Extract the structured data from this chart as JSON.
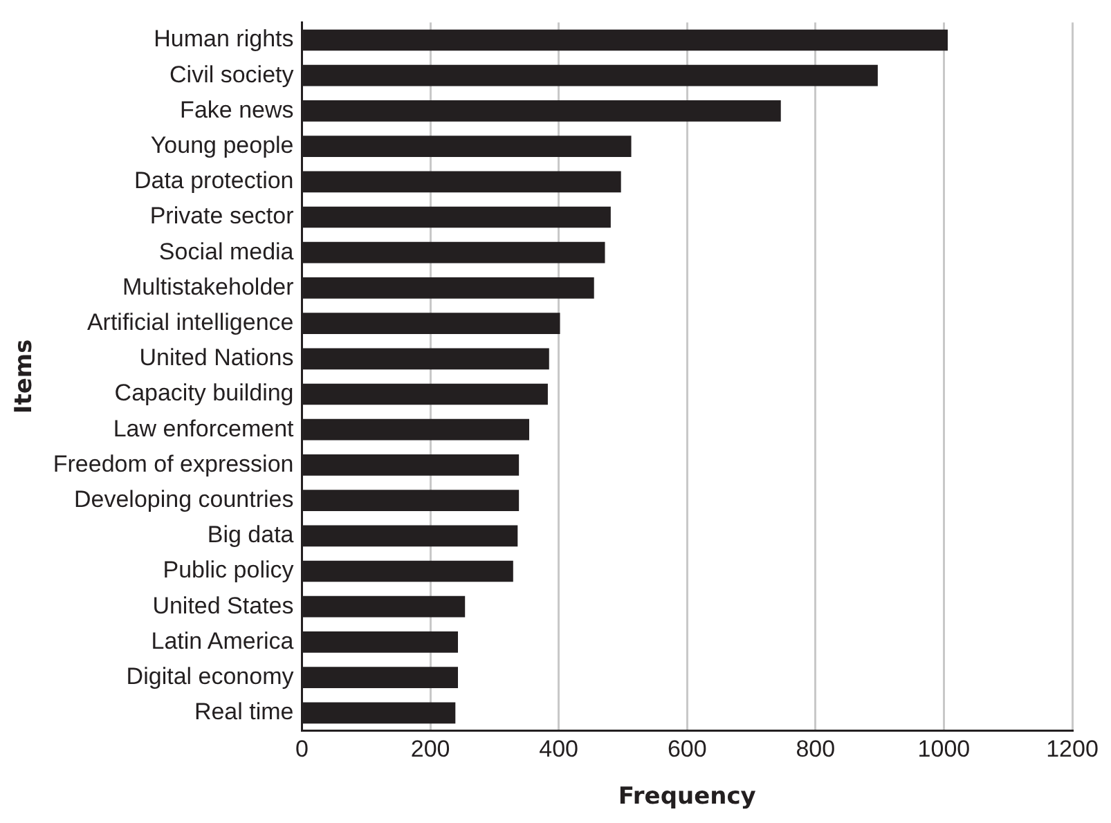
{
  "chart_data": {
    "type": "bar",
    "orientation": "horizontal",
    "xlabel": "Frequency",
    "ylabel": "Items",
    "categories": [
      "Human rights",
      "Civil society",
      "Fake news",
      "Young people",
      "Data protection",
      "Private sector",
      "Social media",
      "Multistakeholder",
      "Artificial intelligence",
      "United Nations",
      "Capacity building",
      "Law enforcement",
      "Freedom of expression",
      "Developing countries",
      "Big data",
      "Public policy",
      "United States",
      "Latin America",
      "Digital economy",
      "Real time"
    ],
    "values": [
      1006,
      897,
      746,
      513,
      497,
      481,
      472,
      455,
      402,
      385,
      383,
      354,
      338,
      338,
      336,
      329,
      254,
      243,
      243,
      239
    ],
    "color": "#231f20",
    "xlim": [
      0,
      1200
    ],
    "xticks": [
      0,
      200,
      400,
      600,
      800,
      1000,
      1200
    ],
    "grid": "x",
    "legend": false
  }
}
